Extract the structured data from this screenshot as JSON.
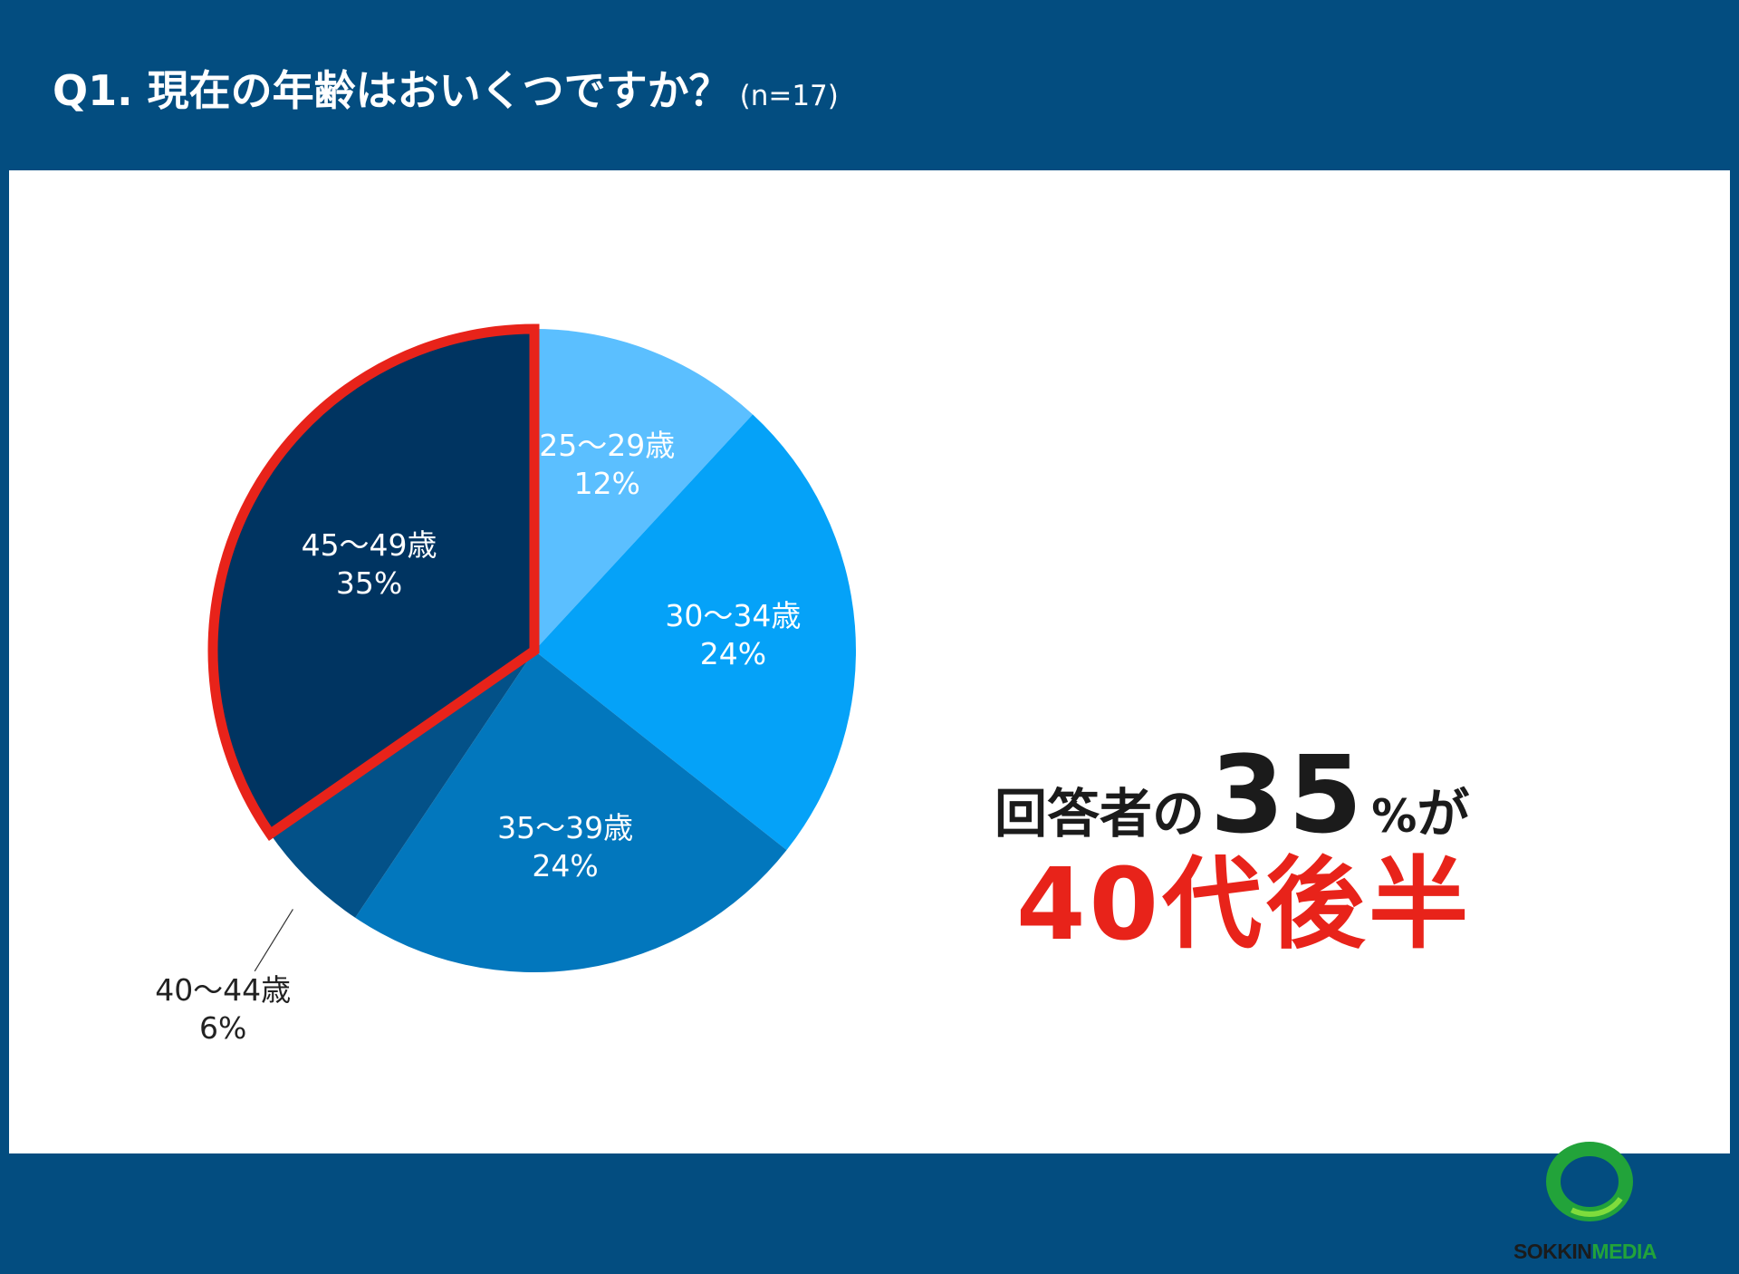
{
  "header": {
    "title": "Q1. 現在の年齢はおいくつですか？",
    "note": "(n=17)"
  },
  "chart_data": {
    "type": "pie",
    "categories": [
      "25〜29歳",
      "30〜34歳",
      "35〜39歳",
      "40〜44歳",
      "45〜49歳"
    ],
    "values": [
      12,
      24,
      24,
      6,
      35
    ],
    "labels": [
      "12%",
      "24%",
      "24%",
      "6%",
      "35%"
    ],
    "colors": [
      "#5bbfff",
      "#05a2f8",
      "#0277bd",
      "#035188",
      "#003461"
    ],
    "highlight": "45〜49歳",
    "highlight_color": "#e8231a",
    "start": "12 o'clock, clockwise"
  },
  "callout": {
    "line1_prefix": "回答者の",
    "line1_number": "35",
    "line1_unit": "%",
    "line1_suffix": "が",
    "line2": "40代後半"
  },
  "logo": {
    "text_a": "SOKKIN",
    "text_b": "MEDIA",
    "color_ring": "#22a33a"
  }
}
